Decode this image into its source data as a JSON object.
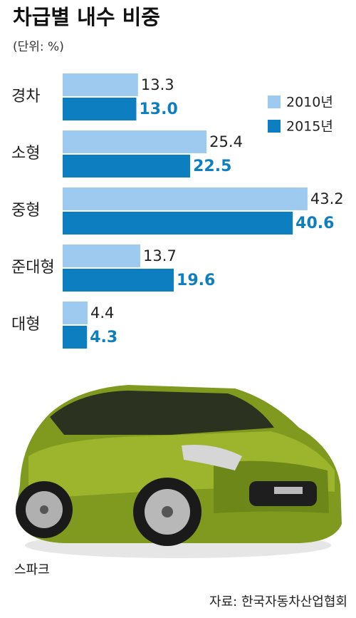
{
  "chart_data": {
    "type": "bar",
    "orientation": "horizontal",
    "title": "차급별 내수 비중",
    "subtitle": "(단위: %)",
    "categories": [
      "경차",
      "소형",
      "중형",
      "준대형",
      "대형"
    ],
    "series": [
      {
        "name": "2010년",
        "color": "#9dcaee",
        "values": [
          13.3,
          25.4,
          43.2,
          13.7,
          4.4
        ]
      },
      {
        "name": "2015년",
        "color": "#0d7fc1",
        "values": [
          13.0,
          22.5,
          40.6,
          19.6,
          4.3
        ],
        "value_labels": [
          "13.0",
          "22.5",
          "40.6",
          "19.6",
          "4.3"
        ]
      }
    ],
    "legend": "upper-right",
    "caption": "스파크",
    "source": "자료: 한국자동차산업협회"
  }
}
